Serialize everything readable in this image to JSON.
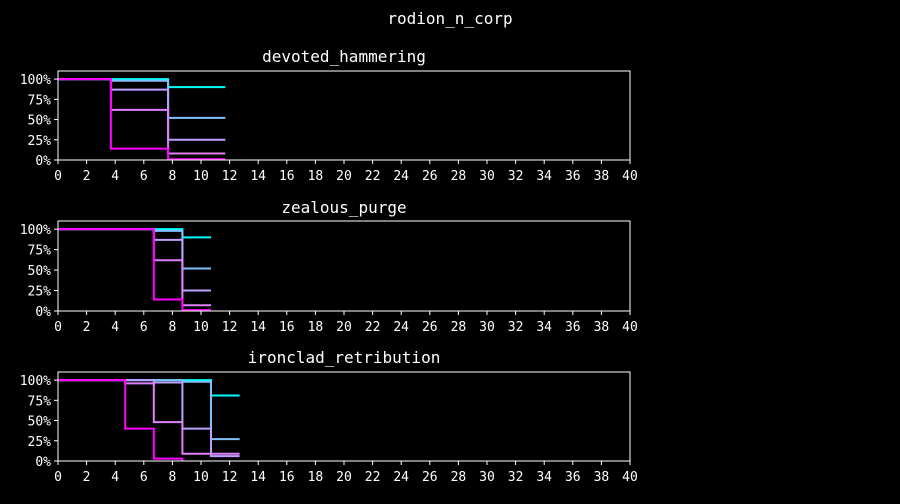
{
  "figure_title": "rodion_n_corp",
  "chart_data": [
    {
      "type": "line",
      "step": "post",
      "title": "devoted_hammering",
      "xlim": [
        0,
        40
      ],
      "ylim": [
        0,
        1.1
      ],
      "x_ticks": [
        0,
        2,
        4,
        6,
        8,
        10,
        12,
        14,
        16,
        18,
        20,
        22,
        24,
        26,
        28,
        30,
        32,
        34,
        36,
        38,
        40
      ],
      "y_ticks": [
        "0%",
        "25%",
        "50%",
        "75%",
        "100%"
      ],
      "y_tick_values": [
        0,
        0.25,
        0.5,
        0.75,
        1.0
      ],
      "series": [
        {
          "color": "#00ffff",
          "x": [
            0,
            3.7,
            7.7,
            11.7
          ],
          "y": [
            1.0,
            1.0,
            0.9,
            0.9
          ]
        },
        {
          "color": "#80c0ff",
          "x": [
            0,
            3.7,
            7.7,
            11.7
          ],
          "y": [
            1.0,
            0.98,
            0.52,
            0.52
          ]
        },
        {
          "color": "#c0a0ff",
          "x": [
            0,
            3.7,
            7.7,
            11.7
          ],
          "y": [
            1.0,
            0.87,
            0.25,
            0.25
          ]
        },
        {
          "color": "#e080ff",
          "x": [
            0,
            3.7,
            7.7,
            11.7
          ],
          "y": [
            1.0,
            0.62,
            0.08,
            0.08
          ]
        },
        {
          "color": "#ff00ff",
          "x": [
            0,
            3.7,
            7.7,
            11.7
          ],
          "y": [
            1.0,
            0.14,
            0.01,
            0.01
          ]
        }
      ]
    },
    {
      "type": "line",
      "step": "post",
      "title": "zealous_purge",
      "xlim": [
        0,
        40
      ],
      "ylim": [
        0,
        1.1
      ],
      "x_ticks": [
        0,
        2,
        4,
        6,
        8,
        10,
        12,
        14,
        16,
        18,
        20,
        22,
        24,
        26,
        28,
        30,
        32,
        34,
        36,
        38,
        40
      ],
      "y_ticks": [
        "0%",
        "25%",
        "50%",
        "75%",
        "100%"
      ],
      "y_tick_values": [
        0,
        0.25,
        0.5,
        0.75,
        1.0
      ],
      "series": [
        {
          "color": "#00ffff",
          "x": [
            0,
            6.7,
            8.7,
            10.7
          ],
          "y": [
            1.0,
            1.0,
            0.9,
            0.9
          ]
        },
        {
          "color": "#80c0ff",
          "x": [
            0,
            6.7,
            8.7,
            10.7
          ],
          "y": [
            1.0,
            0.98,
            0.52,
            0.52
          ]
        },
        {
          "color": "#c0a0ff",
          "x": [
            0,
            6.7,
            8.7,
            10.7
          ],
          "y": [
            1.0,
            0.87,
            0.25,
            0.25
          ]
        },
        {
          "color": "#e080ff",
          "x": [
            0,
            6.7,
            8.7,
            10.7
          ],
          "y": [
            1.0,
            0.62,
            0.07,
            0.07
          ]
        },
        {
          "color": "#ff00ff",
          "x": [
            0,
            6.7,
            8.7,
            10.7
          ],
          "y": [
            1.0,
            0.14,
            0.01,
            0.01
          ]
        }
      ]
    },
    {
      "type": "line",
      "step": "post",
      "title": "ironclad_retribution",
      "xlim": [
        0,
        40
      ],
      "ylim": [
        0,
        1.1
      ],
      "x_ticks": [
        0,
        2,
        4,
        6,
        8,
        10,
        12,
        14,
        16,
        18,
        20,
        22,
        24,
        26,
        28,
        30,
        32,
        34,
        36,
        38,
        40
      ],
      "y_ticks": [
        "0%",
        "25%",
        "50%",
        "75%",
        "100%"
      ],
      "y_tick_values": [
        0,
        0.25,
        0.5,
        0.75,
        1.0
      ],
      "series": [
        {
          "color": "#00ffff",
          "x": [
            0,
            10.7,
            12.7
          ],
          "y": [
            1.0,
            0.81,
            0.81
          ]
        },
        {
          "color": "#80c0ff",
          "x": [
            0,
            8.7,
            10.7,
            12.7
          ],
          "y": [
            1.0,
            0.98,
            0.27,
            0.27
          ]
        },
        {
          "color": "#c0a0ff",
          "x": [
            0,
            6.7,
            8.7,
            10.7,
            12.7
          ],
          "y": [
            1.0,
            0.97,
            0.4,
            0.06,
            0.06
          ]
        },
        {
          "color": "#e080ff",
          "x": [
            0,
            4.7,
            6.7,
            8.7,
            12.7
          ],
          "y": [
            1.0,
            0.96,
            0.48,
            0.09,
            0.09
          ]
        },
        {
          "color": "#ff00ff",
          "x": [
            0,
            4.7,
            6.7,
            8.7
          ],
          "y": [
            1.0,
            0.4,
            0.03,
            0.0
          ]
        }
      ]
    }
  ]
}
